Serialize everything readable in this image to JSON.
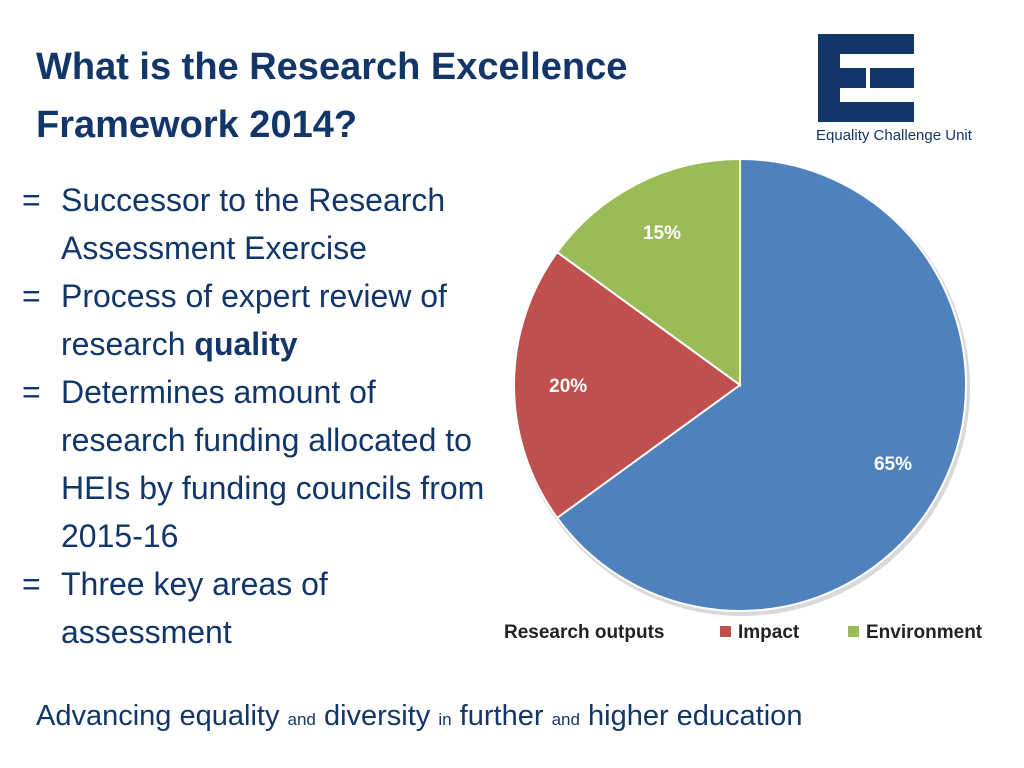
{
  "slide": {
    "title": "What is the Research Excellence Framework 2014?",
    "bullet_marker": "=",
    "bullets": [
      {
        "text": "Successor to the Research Assessment Exercise"
      },
      {
        "text_before": "Process of expert review of research ",
        "text_bold": "quality"
      },
      {
        "text": "Determines amount of research funding allocated to HEIs by funding councils from 2015-16"
      },
      {
        "text": "Three key areas of assessment"
      }
    ],
    "footer": {
      "part1": "Advancing equality",
      "and1": "and",
      "part2": "diversity",
      "in": "in",
      "part3": "further",
      "and2": "and",
      "part4": "higher education"
    }
  },
  "logo": {
    "name": "Equality Challenge Unit",
    "color": "#12366a"
  },
  "chart_data": {
    "type": "pie",
    "categories": [
      "Research outputs",
      "Impact",
      "Environment"
    ],
    "values": [
      65,
      20,
      15
    ],
    "labels": [
      "65%",
      "20%",
      "15%"
    ],
    "colors": [
      "#4f81bd",
      "#c0504d",
      "#9bbb59"
    ],
    "legend_position": "bottom"
  }
}
